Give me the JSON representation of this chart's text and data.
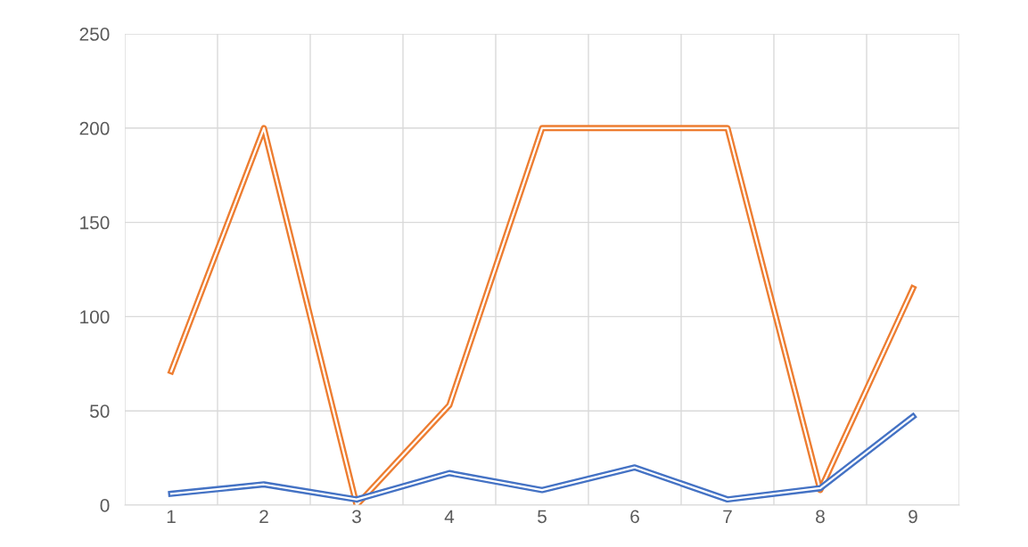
{
  "chart_data": {
    "type": "line",
    "categories": [
      "1",
      "2",
      "3",
      "4",
      "5",
      "6",
      "7",
      "8",
      "9"
    ],
    "series": [
      {
        "color": "#ed7d31",
        "values": [
          71,
          200,
          0,
          53,
          200,
          200,
          200,
          8,
          115
        ]
      },
      {
        "color": "#4472c4",
        "values": [
          6,
          11,
          3,
          17,
          8,
          20,
          3,
          9,
          47
        ]
      }
    ],
    "ylim": [
      0,
      250
    ],
    "yticks": [
      0,
      50,
      100,
      150,
      200,
      250
    ],
    "grid": true,
    "line_style": "solid",
    "marker": "none"
  }
}
